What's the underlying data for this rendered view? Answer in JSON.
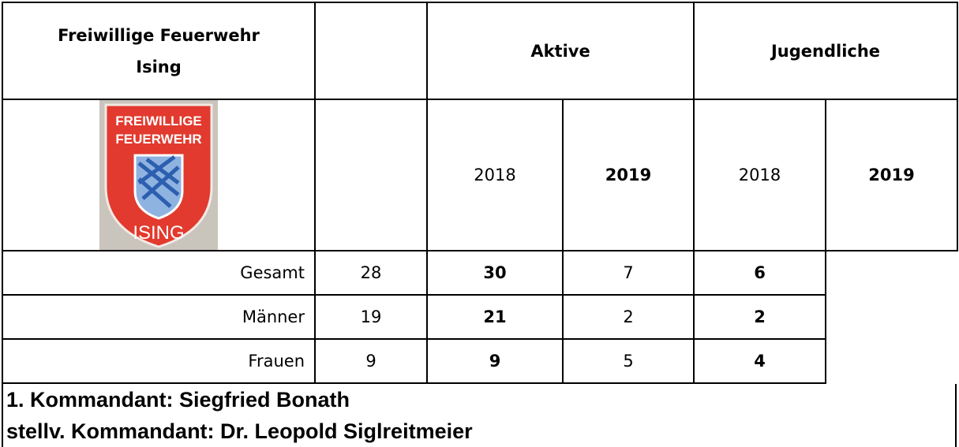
{
  "header": {
    "title_lines": [
      "Freiwillige Feuerwehr",
      "Ising"
    ],
    "groups": [
      "Aktive",
      "Jugendliche"
    ]
  },
  "logo": {
    "top_lines": [
      "FREIWILLIGE",
      "FEUERWEHR"
    ],
    "bottom": "ISING"
  },
  "years": [
    "2018",
    "2019",
    "2018",
    "2019"
  ],
  "rows": [
    {
      "label": "Gesamt",
      "values": [
        28,
        30,
        7,
        6
      ]
    },
    {
      "label": "Männer",
      "values": [
        19,
        21,
        2,
        2
      ]
    },
    {
      "label": "Frauen",
      "values": [
        9,
        9,
        5,
        4
      ]
    }
  ],
  "footer": [
    "1. Kommandant: Siegfried Bonath",
    "stellv. Kommandant: Dr. Leopold Siglreitmeier"
  ]
}
